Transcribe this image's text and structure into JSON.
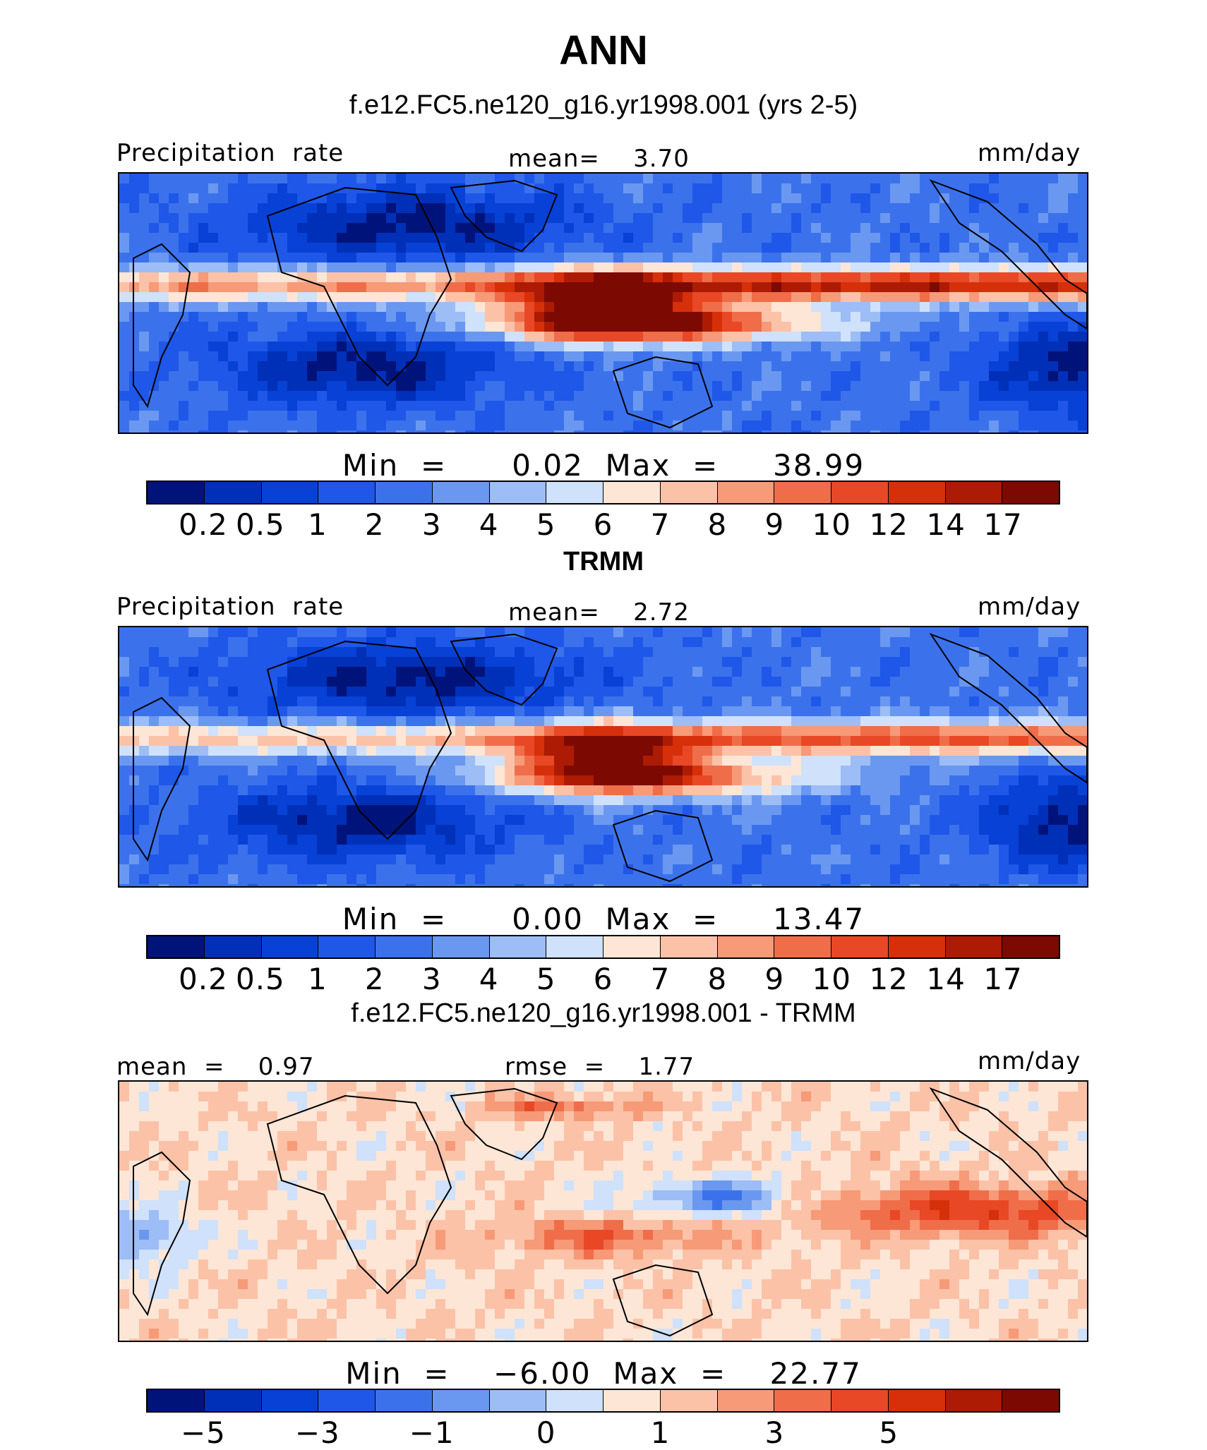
{
  "title": "ANN",
  "colors": {
    "precip": [
      "#00137a",
      "#0030b8",
      "#0741d6",
      "#1f57e8",
      "#3b72ec",
      "#6a98f0",
      "#9dbdf6",
      "#cfe1fb",
      "#fde6d6",
      "#fbc2a8",
      "#f69a78",
      "#f06d4a",
      "#e84825",
      "#d6300a",
      "#ad1b05",
      "#7c0a02"
    ],
    "diff": [
      "#00137a",
      "#0030b8",
      "#0741d6",
      "#1f57e8",
      "#3b72ec",
      "#6a98f0",
      "#9dbdf6",
      "#cfe1fb",
      "#fde6d6",
      "#fbc2a8",
      "#f69a78",
      "#f06d4a",
      "#e84825",
      "#d6300a",
      "#ad1b05",
      "#7c0a02"
    ]
  },
  "panels": [
    {
      "title": "f.e12.FC5.ne120_g16.yr1998.001 (yrs 2-5)",
      "left_label": "Precipitation  rate",
      "center_label": "mean=    3.70",
      "right_label": "mm/day",
      "minmax": "Min  =      0.02  Max  =     38.99",
      "ticks": [
        "0.2",
        "0.5",
        "1",
        "2",
        "3",
        "4",
        "5",
        "6",
        "7",
        "8",
        "9",
        "10",
        "12",
        "14",
        "17"
      ],
      "field": "model"
    },
    {
      "title": "TRMM",
      "left_label": "Precipitation  rate",
      "center_label": "mean=    2.72",
      "right_label": "mm/day",
      "minmax": "Min  =      0.00  Max  =     13.47",
      "ticks": [
        "0.2",
        "0.5",
        "1",
        "2",
        "3",
        "4",
        "5",
        "6",
        "7",
        "8",
        "9",
        "10",
        "12",
        "14",
        "17"
      ],
      "field": "obs"
    },
    {
      "title": "f.e12.FC5.ne120_g16.yr1998.001 - TRMM",
      "left_label": "mean  =    0.97",
      "center_label": "rmse  =    1.77",
      "right_label": "mm/day",
      "minmax": "Min  =    −6.00  Max  =    22.77",
      "ticks": [
        "−5",
        "−3",
        "−1",
        "0",
        "1",
        "3",
        "5"
      ],
      "field": "diff"
    }
  ]
}
